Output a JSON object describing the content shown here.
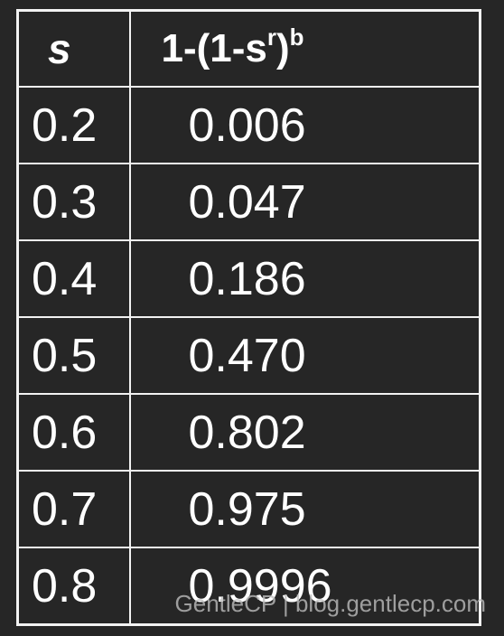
{
  "table": {
    "header": {
      "s": "s",
      "formula_base": "1-(1-s",
      "formula_sup_r": "r",
      "formula_close": ")",
      "formula_sup_b": "b"
    },
    "rows": [
      {
        "s": "0.2",
        "value": "0.006"
      },
      {
        "s": "0.3",
        "value": "0.047"
      },
      {
        "s": "0.4",
        "value": "0.186"
      },
      {
        "s": "0.5",
        "value": "0.470"
      },
      {
        "s": "0.6",
        "value": "0.802"
      },
      {
        "s": "0.7",
        "value": "0.975"
      },
      {
        "s": "0.8",
        "value": "0.9996"
      }
    ]
  },
  "watermark": "GentleCP | blog.gentlecp.com",
  "colors": {
    "background": "#262626",
    "border": "#f2f2f2",
    "text": "#ffffff"
  }
}
